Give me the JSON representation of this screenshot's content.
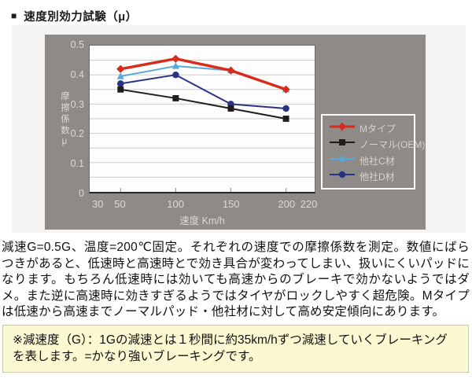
{
  "header": {
    "bullet": "■",
    "title": "速度別効力試験（μ）"
  },
  "chart_data": {
    "type": "line",
    "title": "速度別効力試験（μ）",
    "x": [
      50,
      100,
      150,
      200
    ],
    "series": [
      {
        "name": "Mタイプ",
        "values": [
          0.42,
          0.455,
          0.415,
          0.35
        ],
        "color": "#d92b1c",
        "marker": "diamond",
        "line_width": 3.5
      },
      {
        "name": "ノーマル(OEM)",
        "values": [
          0.35,
          0.32,
          0.285,
          0.25
        ],
        "color": "#1e1c1c",
        "marker": "square",
        "line_width": 2
      },
      {
        "name": "他社C材",
        "values": [
          0.395,
          0.43,
          0.415,
          0.35
        ],
        "color": "#58a9d9",
        "marker": "triangle",
        "line_width": 2
      },
      {
        "name": "他社D材",
        "values": [
          0.37,
          0.4,
          0.3,
          0.285
        ],
        "color": "#2a3383",
        "marker": "circle",
        "line_width": 2
      }
    ],
    "xlabel": "速度 Km/h",
    "ylabel": "摩擦係数μ",
    "x_ticks": [
      30,
      50,
      100,
      150,
      200,
      220
    ],
    "y_ticks": [
      0.5,
      0.4,
      0.3,
      0.2,
      0.1,
      0
    ],
    "xlim": [
      22,
      226
    ],
    "ylim": [
      0,
      0.5
    ],
    "grid": true,
    "grid_step": 0.05,
    "legend_position": "right",
    "z_order": [
      2,
      3,
      1,
      0
    ],
    "colors": {
      "chart_bg": "#8e8a87",
      "panel_bg": "#f4f3f1",
      "plot_bg": "#fdfdfd",
      "grid": "#cbcbcb",
      "axis_text": "#dcd9d6",
      "legend_border": "#ffffff",
      "note_bg": "#fbf9d2",
      "note_border": "#c9c9a8"
    }
  },
  "description": "減速G=0.5G、温度=200℃固定。それぞれの速度での摩擦係数を測定。数値にばらつきがあると、低速時と高速時とで効き具合が変わってしまい、扱いにくいパッドになります。もちろん低速時には効いても高速からのブレーキで効かないようではダメ。また逆に高速時に効きすぎるようではタイヤがロックしやすく超危険。Mタイプは低速から高速までノーマルパッド・他社材に対して高め安定傾向にあります。",
  "note": "※減速度（G）：1Gの減速とは１秒間に約35km/hずつ減速していくブレーキングを表します。=かなり強いブレーキングです。"
}
